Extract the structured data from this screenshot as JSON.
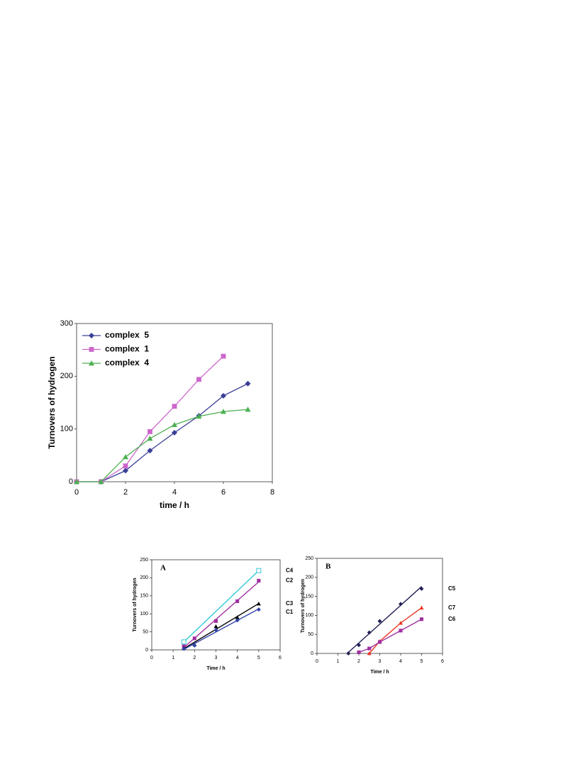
{
  "chart_data": [
    {
      "type": "line",
      "x_label": "time / h",
      "y_label": "Turnovers of hydrogen",
      "x": [
        0,
        1,
        2,
        3,
        4,
        5,
        6,
        7
      ],
      "xlim": [
        0,
        8
      ],
      "xticks": [
        0,
        2,
        4,
        6,
        8
      ],
      "ylim": [
        0,
        300
      ],
      "yticks": [
        0,
        100,
        200,
        300
      ],
      "legend": "top-left",
      "series": [
        {
          "name": "complex  5",
          "color": "#3b3f98",
          "marker": "diamond",
          "values": [
            0,
            0,
            21,
            59,
            93,
            125,
            163,
            186
          ]
        },
        {
          "name": "complex  1",
          "color": "#cc66cc",
          "marker": "square",
          "values": [
            0,
            0,
            30,
            95,
            143,
            194,
            238,
            null
          ]
        },
        {
          "name": "complex  4",
          "color": "#4caf50",
          "marker": "triangle",
          "values": [
            0,
            0,
            47,
            82,
            108,
            124,
            133,
            137
          ]
        }
      ]
    },
    {
      "type": "scatter",
      "panel_label": "A",
      "x_label": "Time / h",
      "y_label": "Turnovers of hydrogen",
      "xlim": [
        0,
        6
      ],
      "xticks": [
        0,
        1,
        2,
        3,
        4,
        5,
        6
      ],
      "ylim": [
        0,
        250
      ],
      "yticks": [
        0,
        50,
        100,
        150,
        200,
        250
      ],
      "end_labels": true,
      "series": [
        {
          "name": "C4",
          "color": "#33c8d8",
          "marker": "open-square",
          "line": "fit",
          "x": [
            1.5,
            5
          ],
          "values": [
            22,
            220
          ]
        },
        {
          "name": "C2",
          "color": "#a0309f",
          "marker": "square",
          "line": "fit",
          "x": [
            1.5,
            2,
            3,
            4,
            5
          ],
          "values": [
            10,
            32,
            80,
            135,
            192
          ]
        },
        {
          "name": "C3",
          "color": "#000000",
          "marker": "triangle",
          "line": "fit",
          "x": [
            1.5,
            2,
            3,
            4,
            5
          ],
          "values": [
            5,
            15,
            65,
            90,
            128
          ]
        },
        {
          "name": "C1",
          "color": "#3344aa",
          "marker": "diamond",
          "line": "fit",
          "x": [
            1.5,
            2,
            3,
            4,
            5
          ],
          "values": [
            3,
            12,
            55,
            82,
            112
          ]
        }
      ]
    },
    {
      "type": "scatter",
      "panel_label": "B",
      "x_label": "Time / h",
      "y_label": "Turnovers of hydrogen",
      "xlim": [
        0,
        6
      ],
      "xticks": [
        0,
        1,
        2,
        3,
        4,
        5,
        6
      ],
      "ylim": [
        0,
        250
      ],
      "yticks": [
        0,
        50,
        100,
        150,
        200,
        250
      ],
      "end_labels": true,
      "series": [
        {
          "name": "C5",
          "color": "#222255",
          "marker": "diamond",
          "line": "fit",
          "x": [
            1.5,
            2,
            2.5,
            3,
            4,
            5
          ],
          "values": [
            0,
            22,
            55,
            85,
            130,
            170
          ]
        },
        {
          "name": "C7",
          "color": "#ee3322",
          "marker": "triangle",
          "line": "connect",
          "x": [
            2.5,
            3,
            4,
            5
          ],
          "values": [
            0,
            32,
            80,
            120
          ]
        },
        {
          "name": "C6",
          "color": "#a0309f",
          "marker": "square",
          "line": "connect",
          "x": [
            2,
            2.5,
            3,
            4,
            5
          ],
          "values": [
            3,
            13,
            30,
            60,
            90
          ]
        }
      ]
    }
  ]
}
